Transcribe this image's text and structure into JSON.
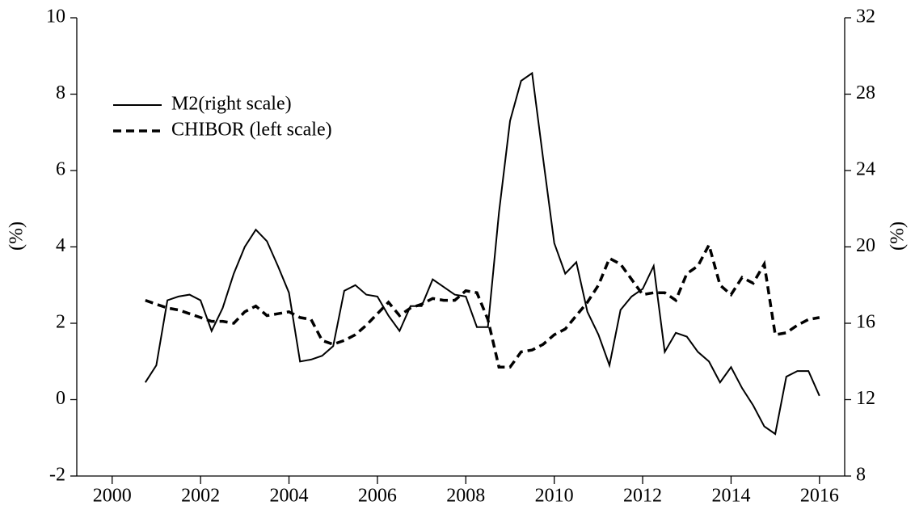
{
  "chart_data": {
    "type": "line",
    "y_label": "(%)",
    "y2_label": "(%)",
    "x": [
      2000.75,
      2001,
      2001.25,
      2001.5,
      2001.75,
      2002,
      2002.25,
      2002.5,
      2002.75,
      2003,
      2003.25,
      2003.5,
      2003.75,
      2004,
      2004.25,
      2004.5,
      2004.75,
      2005,
      2005.25,
      2005.5,
      2005.75,
      2006,
      2006.25,
      2006.5,
      2006.75,
      2007,
      2007.25,
      2007.5,
      2007.75,
      2008,
      2008.25,
      2008.5,
      2008.75,
      2009,
      2009.25,
      2009.5,
      2009.75,
      2010,
      2010.25,
      2010.5,
      2010.75,
      2011,
      2011.25,
      2011.5,
      2011.75,
      2012,
      2012.25,
      2012.5,
      2012.75,
      2013,
      2013.25,
      2013.5,
      2013.75,
      2014,
      2014.25,
      2014.5,
      2014.75,
      2015,
      2015.25,
      2015.5,
      2015.75,
      2016
    ],
    "series": [
      {
        "name": "M2(right scale)",
        "color": "#000000",
        "dash": "solid",
        "axis": "y2",
        "values": [
          12.9,
          13.8,
          17.2,
          17.4,
          17.5,
          17.2,
          15.6,
          16.8,
          18.6,
          20.0,
          20.9,
          20.3,
          19.0,
          17.6,
          14.0,
          14.1,
          14.3,
          14.8,
          17.7,
          18.0,
          17.5,
          17.4,
          16.4,
          15.6,
          16.9,
          16.9,
          18.3,
          17.9,
          17.5,
          17.4,
          15.8,
          15.8,
          21.8,
          26.6,
          28.7,
          29.1,
          24.6,
          20.2,
          18.6,
          19.2,
          16.6,
          15.4,
          13.8,
          16.7,
          17.4,
          17.8,
          19.0,
          14.5,
          15.5,
          15.3,
          14.5,
          14.0,
          12.9,
          13.7,
          12.6,
          11.7,
          10.6,
          10.2,
          13.2,
          13.5,
          13.5,
          12.2
        ]
      },
      {
        "name": "CHIBOR (left scale)",
        "color": "#000000",
        "dash": "dashed",
        "axis": "y",
        "values": [
          2.6,
          2.5,
          2.4,
          2.35,
          2.25,
          2.15,
          2.05,
          2.05,
          2.0,
          2.3,
          2.45,
          2.2,
          2.25,
          2.3,
          2.15,
          2.1,
          1.55,
          1.45,
          1.55,
          1.7,
          1.95,
          2.25,
          2.55,
          2.2,
          2.4,
          2.5,
          2.65,
          2.6,
          2.6,
          2.85,
          2.8,
          2.1,
          0.85,
          0.85,
          1.25,
          1.3,
          1.45,
          1.7,
          1.85,
          2.2,
          2.55,
          3.0,
          3.7,
          3.55,
          3.15,
          2.75,
          2.8,
          2.8,
          2.6,
          3.3,
          3.5,
          4.05,
          3.0,
          2.75,
          3.2,
          3.05,
          3.55,
          1.7,
          1.75,
          1.95,
          2.1,
          2.15
        ]
      }
    ],
    "xlim": [
      1999.2,
      2016.57
    ],
    "xticks": [
      2000,
      2002,
      2004,
      2006,
      2008,
      2010,
      2012,
      2014,
      2016
    ],
    "ylim": [
      -2,
      10
    ],
    "yticks": [
      -2,
      0,
      2,
      4,
      6,
      8,
      10
    ],
    "y2lim": [
      8,
      32
    ],
    "y2ticks": [
      8,
      12,
      16,
      20,
      24,
      28,
      32
    ],
    "legend": "upper-left",
    "grid": false
  }
}
